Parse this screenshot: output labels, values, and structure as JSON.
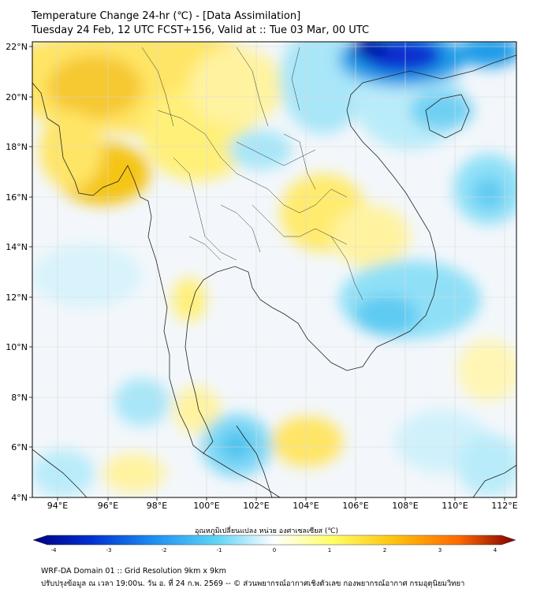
{
  "title": {
    "line1": "Temperature Change 24-hr (℃) - [Data Assimilation]",
    "line2": "Tuesday 24 Feb, 12 UTC FCST+156, Valid at :: Tue 03 Mar, 00 UTC"
  },
  "axes": {
    "lat_labels": [
      "22°N",
      "20°N",
      "18°N",
      "16°N",
      "14°N",
      "12°N",
      "10°N",
      "8°N",
      "6°N",
      "4°N"
    ],
    "lon_labels": [
      "94°E",
      "96°E",
      "98°E",
      "100°E",
      "102°E",
      "104°E",
      "106°E",
      "108°E",
      "110°E",
      "112°E"
    ],
    "lat_range": [
      4,
      22.3
    ],
    "lon_range": [
      93,
      112.5
    ]
  },
  "colorbar": {
    "label": "อุณหภูมิเปลี่ยนแปลง หน่วย องศาเซลเซียส (℃)",
    "ticks": [
      "-4",
      "-3",
      "-2",
      "-1",
      "0",
      "1",
      "2",
      "3",
      "4"
    ],
    "range": [
      -4,
      4
    ],
    "colors": [
      "#00007f",
      "#0030d0",
      "#1e8ff0",
      "#5fd4f5",
      "#ffffff",
      "#ffff66",
      "#ffc20e",
      "#ff6a00",
      "#c00000",
      "#7f0000"
    ]
  },
  "footer": {
    "line1": "WRF-DA Domain 01 :: Grid Resolution 9km x 9km",
    "line2": "ปรับปรุงข้อมูล ณ เวลา 19:00น. วัน อ. ที่ 24 ก.พ. 2569 -- © ส่วนพยากรณ์อากาศเชิงตัวเลข กองพยากรณ์อากาศ กรมอุตุนิยมวิทยา"
  },
  "colors": {
    "warm": "#ffe566",
    "warm_strong": "#f5c518",
    "cool": "#8fe0f7",
    "cool_strong": "#1e9be8",
    "cold": "#0a2fd0"
  }
}
